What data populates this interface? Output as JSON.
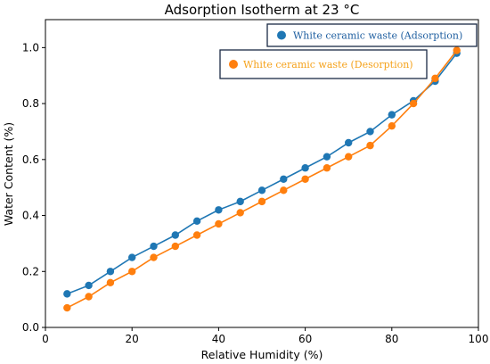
{
  "chart_data": {
    "type": "line",
    "title": "Adsorption Isotherm at 23 °C",
    "xlabel": "Relative Humidity (%)",
    "ylabel": "Water Content (%)",
    "xlim": [
      0,
      100
    ],
    "ylim": [
      0,
      1.1
    ],
    "xticks": [
      0,
      20,
      40,
      60,
      80,
      100
    ],
    "yticks": [
      0.0,
      0.2,
      0.4,
      0.6,
      0.8,
      1.0
    ],
    "xtick_labels": [
      "0",
      "20",
      "40",
      "60",
      "80",
      "100"
    ],
    "ytick_labels": [
      "0.0",
      "0.2",
      "0.4",
      "0.6",
      "0.8",
      "1.0"
    ],
    "grid": false,
    "legend_position": "top-right",
    "x": [
      5,
      10,
      15,
      20,
      25,
      30,
      35,
      40,
      45,
      50,
      55,
      60,
      65,
      70,
      75,
      80,
      85,
      90,
      95
    ],
    "series": [
      {
        "name": "White ceramic waste (Adsorption)",
        "color": "#1f77b4",
        "legend_text_color": "#1f5fa0",
        "values": [
          0.12,
          0.15,
          0.2,
          0.25,
          0.29,
          0.33,
          0.38,
          0.42,
          0.45,
          0.49,
          0.53,
          0.57,
          0.61,
          0.66,
          0.7,
          0.76,
          0.81,
          0.88,
          0.98
        ]
      },
      {
        "name": "White ceramic waste (Desorption)",
        "color": "#ff7f0e",
        "legend_text_color": "#f5a21b",
        "values": [
          0.07,
          0.11,
          0.16,
          0.2,
          0.25,
          0.29,
          0.33,
          0.37,
          0.41,
          0.45,
          0.49,
          0.53,
          0.57,
          0.61,
          0.65,
          0.72,
          0.8,
          0.89,
          0.99
        ]
      }
    ]
  }
}
